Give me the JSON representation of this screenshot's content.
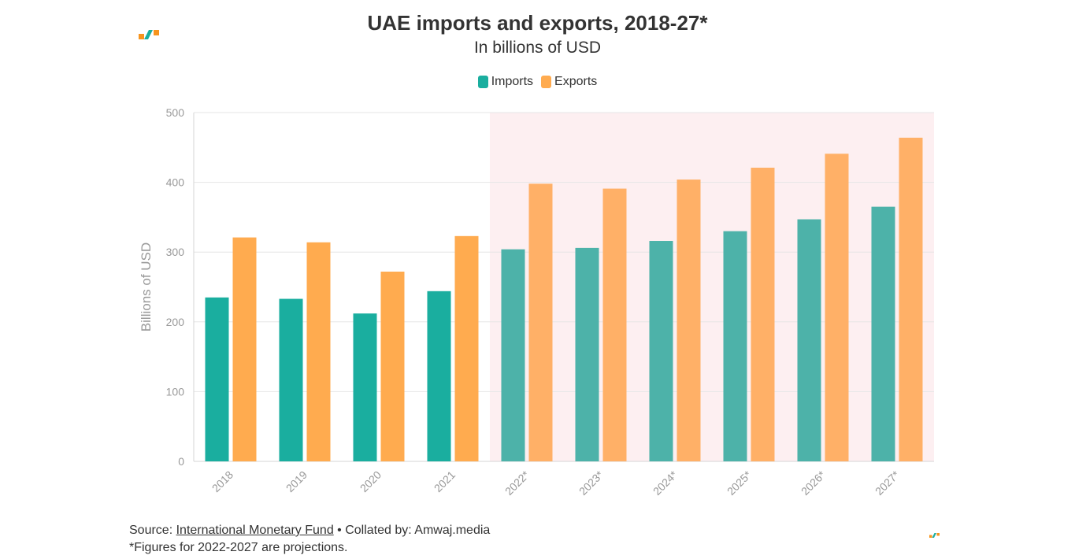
{
  "header": {
    "title": "UAE imports and exports, 2018-27*",
    "subtitle": "In billions of USD"
  },
  "footer": {
    "source_prefix": "Source:",
    "source_link": "International Monetary Fund",
    "collated": "• Collated by: Amwaj.media",
    "note": "*Figures for 2022-2027 are projections."
  },
  "colors": {
    "imports": "#1aae9f",
    "exports": "#ffab4f",
    "imports_projected": "#4db2a9",
    "exports_projected": "#ffb067",
    "projection_band": "#fdeff1"
  },
  "chart_data": {
    "type": "bar",
    "title": "UAE imports and exports, 2018-27*",
    "subtitle": "In billions of USD",
    "xlabel": "",
    "ylabel": "Billions of USD",
    "ylim": [
      0,
      500
    ],
    "yticks": [
      0,
      100,
      200,
      300,
      400,
      500
    ],
    "grid": true,
    "legend_position": "top-center",
    "categories": [
      "2018",
      "2019",
      "2020",
      "2021",
      "2022*",
      "2023*",
      "2024*",
      "2025*",
      "2026*",
      "2027*"
    ],
    "projection_start_index": 4,
    "series": [
      {
        "name": "Imports",
        "values": [
          235,
          233,
          212,
          244,
          304,
          306,
          316,
          330,
          347,
          365
        ]
      },
      {
        "name": "Exports",
        "values": [
          321,
          314,
          272,
          323,
          398,
          391,
          404,
          421,
          441,
          464
        ]
      }
    ]
  }
}
